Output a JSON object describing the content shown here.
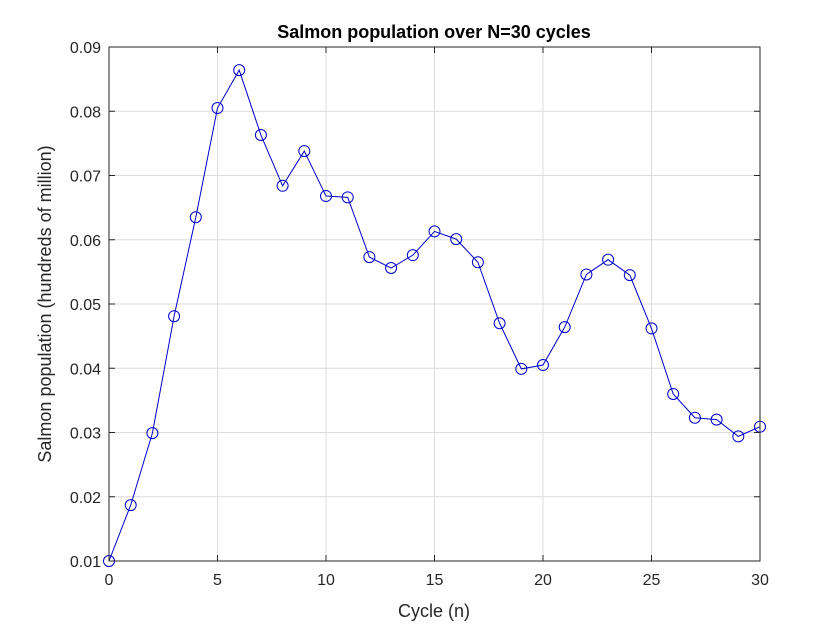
{
  "chart_data": {
    "type": "line",
    "title": "Salmon population over N=30 cycles",
    "xlabel": "Cycle (n)",
    "ylabel": "Salmon population (hundreds of million)",
    "xlim": [
      0,
      30
    ],
    "ylim": [
      0.01,
      0.09
    ],
    "xticks": [
      0,
      5,
      10,
      15,
      20,
      25,
      30
    ],
    "yticks": [
      0.01,
      0.02,
      0.03,
      0.04,
      0.05,
      0.06,
      0.07,
      0.08,
      0.09
    ],
    "xtick_labels": [
      "0",
      "5",
      "10",
      "15",
      "20",
      "25",
      "30"
    ],
    "ytick_labels": [
      "0.01",
      "0.02",
      "0.03",
      "0.04",
      "0.05",
      "0.06",
      "0.07",
      "0.08",
      "0.09"
    ],
    "grid": true,
    "marker": "circle",
    "line_color": "#0000cc",
    "series": [
      {
        "x": [
          0,
          1,
          2,
          3,
          4,
          5,
          6,
          7,
          8,
          9,
          10,
          11,
          12,
          13,
          14,
          15,
          16,
          17,
          18,
          19,
          20,
          21,
          22,
          23,
          24,
          25,
          26,
          27,
          28,
          29,
          30
        ],
        "values": [
          0.01,
          0.0187,
          0.0299,
          0.0481,
          0.0635,
          0.0805,
          0.0864,
          0.0763,
          0.0684,
          0.0738,
          0.0668,
          0.0666,
          0.0573,
          0.0556,
          0.0576,
          0.0613,
          0.0601,
          0.0565,
          0.047,
          0.0399,
          0.0405,
          0.0464,
          0.0546,
          0.0569,
          0.0545,
          0.0462,
          0.036,
          0.0323,
          0.032,
          0.0294,
          0.0309
        ]
      }
    ]
  }
}
